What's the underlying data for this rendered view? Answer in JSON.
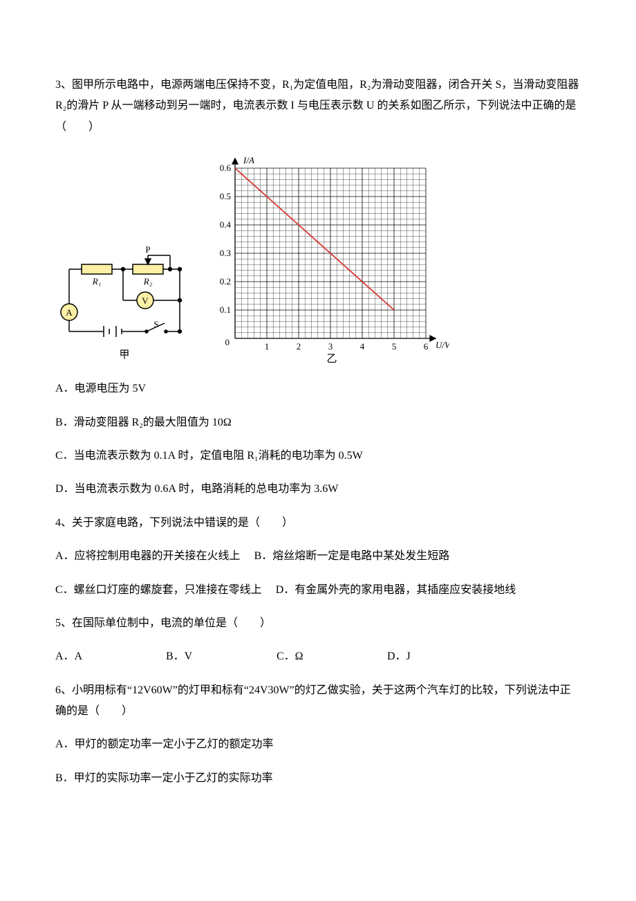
{
  "q3": {
    "stem": "3、图甲所示电路中，电源两端电压保持不变，R₁为定值电阻，R₂为滑动变阻器，闭合开关 S，当滑动变阻器 R₂的滑片 P 从一端移动到另一端时，电流表示数 I 与电压表示数 U 的关系如图乙所示，下列说法中正确的是（　　）",
    "optA": "A．电源电压为 5V",
    "optB": "B．滑动变阻器 R₂的最大阻值为 10Ω",
    "optC": "C．当电流表示数为 0.1A 时，定值电阻 R₁消耗的电功率为 0.5W",
    "optD": "D．当电流表示数为 0.6A 时，电路消耗的总电功率为 3.6W",
    "circuit": {
      "labelP": "P",
      "labelR1": "R₁",
      "labelR2": "R₂",
      "labelA": "A",
      "labelV": "V",
      "labelS": "S",
      "caption": "甲",
      "wire_color": "#000000",
      "R_fill": "#fef0a6",
      "meter_fill": "#fef0a6"
    },
    "chart": {
      "type": "line",
      "x_axis_label": "U/V",
      "y_axis_label": "I/A",
      "x_ticks": [
        "1",
        "2",
        "3",
        "4",
        "5",
        "6"
      ],
      "y_ticks": [
        "0",
        "0.1",
        "0.2",
        "0.3",
        "0.4",
        "0.5",
        "0.6"
      ],
      "xlim": [
        0,
        6
      ],
      "ylim": [
        0,
        0.6
      ],
      "minor_div_x": 5,
      "minor_div_y": 5,
      "line_color": "#d9362e",
      "grid_color": "#000000",
      "line_points": [
        [
          0,
          0.6
        ],
        [
          5,
          0.1
        ]
      ],
      "caption": "乙"
    }
  },
  "q4": {
    "stem": "4、关于家庭电路，下列说法中错误的是（　　）",
    "optA": "A．应将控制用电器的开关接在火线上",
    "optB": "B．熔丝熔断一定是电路中某处发生短路",
    "optC": "C．螺丝口灯座的螺旋套，只准接在零线上",
    "optD": "D．有金属外壳的家用电器，其插座应安装接地线"
  },
  "q5": {
    "stem": "5、在国际单位制中，电流的单位是（　　）",
    "optA": "A．A",
    "optB": "B．V",
    "optC": "C．Ω",
    "optD": "D．J"
  },
  "q6": {
    "stem": "6、小明用标有“12V60W”的灯甲和标有“24V30W”的灯乙做实验，关于这两个汽车灯的比较，下列说法中正确的是（　　）",
    "optA": "A．甲灯的额定功率一定小于乙灯的额定功率",
    "optB": "B．甲灯的实际功率一定小于乙灯的实际功率"
  }
}
